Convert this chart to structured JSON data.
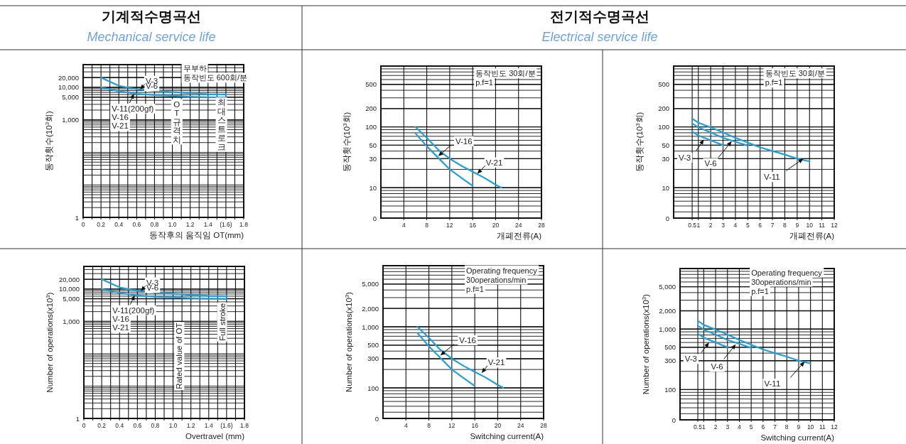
{
  "chart_data": [
    {
      "type": "line",
      "title": "기계적수명곡선",
      "subtitle": "Mechanical service life",
      "xlabel": "동작후의 움직임 OT(mm)",
      "ylabel": "동작횟수(10$^{3}$회)",
      "log": "y",
      "grid": true,
      "xlim": [
        0,
        1.8
      ],
      "xticks": [
        0,
        {
          "value": 0.1,
          "label": null
        },
        0.2,
        {
          "value": 0.3,
          "label": null
        },
        0.4,
        {
          "value": 0.5,
          "label": null
        },
        0.6,
        {
          "value": 0.7,
          "label": null
        },
        0.8,
        {
          "value": 0.9,
          "label": null
        },
        {
          "value": 1,
          "label": "1.0"
        },
        {
          "value": 1.1,
          "label": null
        },
        1.2,
        {
          "value": 1.3,
          "label": null
        },
        1.4,
        {
          "value": 1.5,
          "label": null
        },
        {
          "value": 1.6,
          "label": "(1.6)"
        },
        {
          "value": 1.7,
          "label": null
        },
        1.8
      ],
      "ylim": [
        1,
        50000
      ],
      "yticks": [
        1,
        {
          "value": 1000,
          "label": "1,000"
        },
        {
          "value": 5000,
          "label": "5,000"
        },
        {
          "value": 10000,
          "label": "10,000"
        },
        {
          "value": 20000,
          "label": "20,000"
        }
      ],
      "series": [
        {
          "color": "#1ea0dc",
          "x": [
            0.2,
            0.4,
            0.6,
            0.8,
            1.0,
            1.2,
            1.4,
            1.6
          ],
          "values": [
            20000,
            11200,
            8800,
            7800,
            7200,
            6600,
            6200,
            6000
          ]
        },
        {
          "color": "#1ea0dc",
          "x": [
            0.2,
            0.4,
            0.6,
            0.8,
            1.0,
            1.2,
            1.4,
            1.6
          ],
          "values": [
            10000,
            7600,
            6300,
            5800,
            5500,
            5200,
            5000,
            4900
          ]
        }
      ],
      "annotations": [
        "무부하",
        "동작빈도 600회/분",
        {
          "text": "V-3",
          "x": 0.64,
          "y": 8600
        },
        "V-6",
        {
          "text": "V-11(200gf)",
          "x": 0.57,
          "y": 6400
        },
        "V-16",
        "V-21",
        "OT 규격치",
        "최대 스트로크"
      ]
    },
    {
      "type": "line",
      "title": "전기적수명곡선",
      "subtitle": "Electrical service life",
      "xlabel": "개폐전류(A)",
      "ylabel": "동작횟수(10$^{3}$회)",
      "log": "y",
      "grid": true,
      "xlim": [
        0,
        28
      ],
      "xticks": [
        4,
        8,
        12,
        16,
        20,
        24,
        28
      ],
      "ylim": [
        0,
        1000
      ],
      "yticks": [
        0,
        10,
        30,
        50,
        100,
        200,
        500
      ],
      "series": [
        {
          "color": "#1ea0dc",
          "x": [
            6,
            8,
            10,
            12,
            14,
            16
          ],
          "values": [
            79,
            48,
            31,
            20,
            14.6,
            10.7
          ]
        },
        {
          "color": "#1ea0dc",
          "x": [
            6,
            8,
            10,
            12,
            14,
            16,
            18,
            20,
            21
          ],
          "values": [
            100,
            66,
            42,
            30,
            23,
            18.3,
            14.6,
            11.2,
            10
          ]
        }
      ],
      "annotations": [
        "동작빈도 30회/분",
        "p.f=1",
        {
          "text": "V-16",
          "x": 10,
          "y": 33
        },
        {
          "text": "V-21",
          "x": 16.8,
          "y": 17
        }
      ]
    },
    {
      "type": "line",
      "xlabel": "개폐전류(A)",
      "ylabel": "동작횟수(10$^{3}$회)",
      "log": "y",
      "grid": true,
      "xlim": [
        -1,
        12
      ],
      "xticks": [
        0.5,
        1,
        2,
        3,
        4,
        5,
        6,
        7,
        8,
        9,
        10,
        11,
        12
      ],
      "ylim": [
        0,
        1000
      ],
      "yticks": [
        0,
        10,
        30,
        50,
        100,
        200,
        500
      ],
      "series": [
        {
          "color": "#1ea0dc",
          "x": [
            0.5,
            1,
            2,
            3,
            4,
            5,
            6,
            7,
            8,
            9,
            10
          ],
          "values": [
            137,
            117,
            98,
            81,
            66,
            55,
            46,
            40,
            35,
            30,
            27
          ]
        },
        {
          "color": "#1ea0dc",
          "x": [
            0.5,
            1,
            2,
            3,
            4,
            5
          ],
          "values": [
            114,
            98,
            81,
            66,
            57,
            49
          ]
        },
        {
          "color": "#1ea0dc",
          "x": [
            0.5,
            1,
            2,
            3
          ],
          "values": [
            84,
            72,
            60,
            50
          ]
        }
      ],
      "annotations": [
        "동작빈도 30회/분",
        "p.f=1",
        {
          "text": "V-3",
          "x": 1.45,
          "y": 62
        },
        {
          "text": "V-6",
          "x": 3.7,
          "y": 58
        },
        {
          "text": "V-11",
          "x": 9.5,
          "y": 30
        }
      ]
    },
    {
      "type": "line",
      "xlabel": "Overtravel (mm)",
      "ylabel": "Number of operations(x10$^{3}$)",
      "log": "y",
      "grid": true,
      "xlim": [
        0,
        1.8
      ],
      "xticks": [
        0,
        {
          "value": 0.1,
          "label": null
        },
        0.2,
        {
          "value": 0.3,
          "label": null
        },
        0.4,
        {
          "value": 0.5,
          "label": null
        },
        0.6,
        {
          "value": 0.7,
          "label": null
        },
        0.8,
        {
          "value": 0.9,
          "label": null
        },
        {
          "value": 1,
          "label": "1.0"
        },
        {
          "value": 1.1,
          "label": null
        },
        1.2,
        {
          "value": 1.3,
          "label": null
        },
        1.4,
        {
          "value": 1.5,
          "label": null
        },
        {
          "value": 1.6,
          "label": "(1.6)"
        },
        {
          "value": 1.7,
          "label": null
        },
        1.8
      ],
      "ylim": [
        1,
        50000
      ],
      "yticks": [
        1,
        {
          "value": 1000,
          "label": "1,000"
        },
        {
          "value": 5000,
          "label": "5,000"
        },
        {
          "value": 10000,
          "label": "10,000"
        },
        {
          "value": 20000,
          "label": "20,000"
        }
      ],
      "series": [
        {
          "color": "#1ea0dc",
          "x": [
            0.2,
            0.4,
            0.6,
            0.8,
            1.0,
            1.2,
            1.4,
            1.6
          ],
          "values": [
            20000,
            11200,
            8800,
            7800,
            7200,
            6600,
            6200,
            6000
          ]
        },
        {
          "color": "#1ea0dc",
          "x": [
            0.2,
            0.4,
            0.6,
            0.8,
            1.0,
            1.2,
            1.4,
            1.6
          ],
          "values": [
            10000,
            7600,
            6300,
            5800,
            5500,
            5200,
            5000,
            4900
          ]
        }
      ],
      "annotations": [
        {
          "text": "V-3",
          "x": 0.64,
          "y": 8600
        },
        "V-6",
        {
          "text": "V-11(200gf)",
          "x": 0.57,
          "y": 6400
        },
        "V-16",
        "V-21",
        "Rated value of OT",
        "Full stroke"
      ]
    },
    {
      "type": "line",
      "xlabel": "Switching current(A)",
      "ylabel": "Number of operations(x10$^{3}$)",
      "log": "y",
      "grid": true,
      "xlim": [
        0,
        28
      ],
      "xticks": [
        4,
        8,
        12,
        16,
        20,
        24,
        28
      ],
      "ylim": [
        0,
        10000
      ],
      "yticks": [
        0,
        100,
        300,
        500,
        {
          "value": 1000,
          "label": "1,000"
        },
        {
          "value": 2000,
          "label": "2,000"
        },
        {
          "value": 5000,
          "label": "5,000"
        }
      ],
      "series": [
        {
          "color": "#1ea0dc",
          "x": [
            6,
            8,
            10,
            12,
            14,
            16
          ],
          "values": [
            790,
            480,
            310,
            200,
            146,
            107
          ]
        },
        {
          "color": "#1ea0dc",
          "x": [
            6,
            8,
            10,
            12,
            14,
            16,
            18,
            20,
            21
          ],
          "values": [
            1000,
            660,
            420,
            300,
            230,
            183,
            146,
            112,
            100
          ]
        }
      ],
      "annotations": [
        "Operating frequency",
        "30operations/min",
        "p.f=1",
        {
          "text": "V-16",
          "x": 10,
          "y": 340
        },
        {
          "text": "V-21",
          "x": 17.2,
          "y": 175
        }
      ]
    },
    {
      "type": "line",
      "xlabel": "Switching current(A)",
      "ylabel": "Number of operations(x10$^{3}$)",
      "log": "y",
      "grid": true,
      "xlim": [
        -1,
        12
      ],
      "xticks": [
        0.5,
        1,
        2,
        3,
        4,
        5,
        6,
        7,
        8,
        9,
        10,
        11,
        12
      ],
      "ylim": [
        0,
        10000
      ],
      "yticks": [
        0,
        100,
        300,
        500,
        {
          "value": 1000,
          "label": "1,000"
        },
        {
          "value": 2000,
          "label": "2,000"
        },
        {
          "value": 5000,
          "label": "5,000"
        }
      ],
      "series": [
        {
          "color": "#1ea0dc",
          "x": [
            0.5,
            1,
            2,
            3,
            4,
            5,
            6,
            7,
            8,
            9,
            10
          ],
          "values": [
            1370,
            1170,
            980,
            810,
            660,
            550,
            460,
            400,
            350,
            300,
            270
          ]
        },
        {
          "color": "#1ea0dc",
          "x": [
            0.5,
            1,
            2,
            3,
            4,
            5
          ],
          "values": [
            1140,
            980,
            810,
            660,
            570,
            490
          ]
        },
        {
          "color": "#1ea0dc",
          "x": [
            0.5,
            1,
            2,
            3
          ],
          "values": [
            840,
            720,
            600,
            500
          ]
        }
      ],
      "annotations": [
        "Operating frequency",
        "30operations/min",
        "p.f=1",
        {
          "text": "V-3",
          "x": 1.45,
          "y": 600
        },
        {
          "text": "V-6",
          "x": 3.7,
          "y": 560
        },
        {
          "text": "V-11",
          "x": 9.5,
          "y": 290
        }
      ]
    }
  ]
}
